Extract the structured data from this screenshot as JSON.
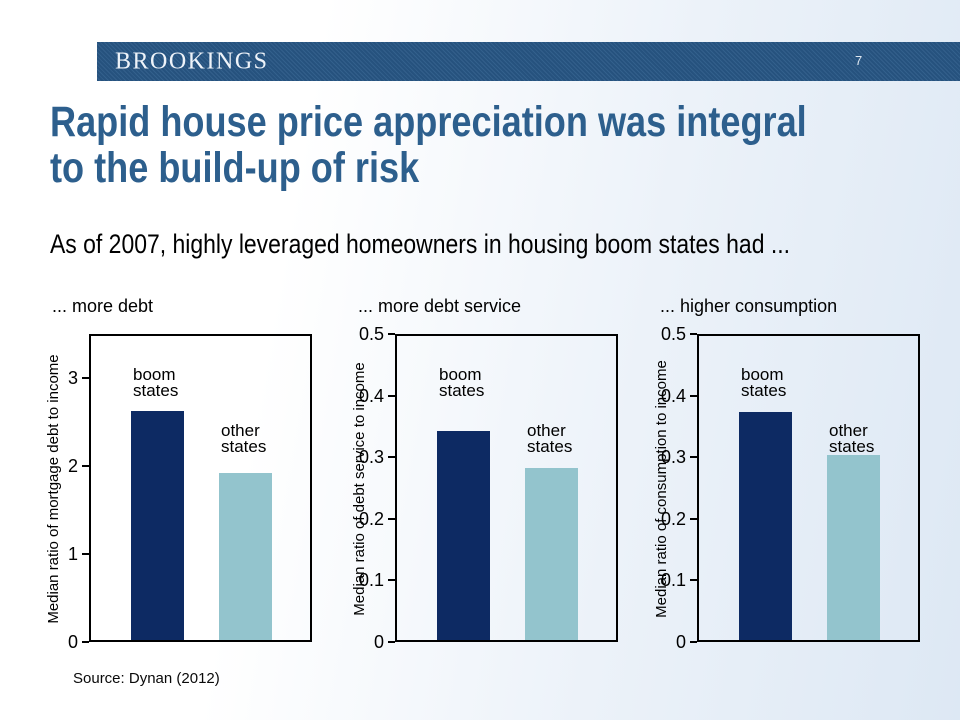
{
  "slide": {
    "brand": "BROOKINGS",
    "page_number": "7",
    "title_line1": "Rapid house price appreciation was integral",
    "title_line2": "to the build-up of risk",
    "subtitle": "As of 2007, highly leveraged homeowners in housing boom states had ...",
    "source": "Source: Dynan (2012)"
  },
  "colors": {
    "header_bar": "#26527e",
    "header_bar_stripe": "#33608c",
    "title_text": "#2d5f8d",
    "boom_bar": "#0d2a63",
    "other_bar": "#93c4cd",
    "background_left": "#ffffff",
    "background_right": "#dde8f4",
    "plot_border": "#000000"
  },
  "chart_data": [
    {
      "type": "bar",
      "title": "... more debt",
      "ylabel": "Median ratio of mortgage debt to income",
      "ylim": [
        0,
        3.5
      ],
      "yticks": [
        0,
        1,
        2,
        3
      ],
      "categories": [
        "boom states",
        "other states"
      ],
      "values": [
        2.6,
        1.9
      ],
      "grid": false,
      "legend": "none"
    },
    {
      "type": "bar",
      "title": "... more debt service",
      "ylabel": "Median ratio of debt service to income",
      "ylim": [
        0,
        0.5
      ],
      "yticks": [
        0,
        0.1,
        0.2,
        0.3,
        0.4,
        0.5
      ],
      "categories": [
        "boom states",
        "other states"
      ],
      "values": [
        0.34,
        0.28
      ],
      "grid": false,
      "legend": "none"
    },
    {
      "type": "bar",
      "title": "... higher consumption",
      "ylabel": "Median ratio of consumption to income",
      "ylim": [
        0,
        0.5
      ],
      "yticks": [
        0,
        0.1,
        0.2,
        0.3,
        0.4,
        0.5
      ],
      "categories": [
        "boom states",
        "other states"
      ],
      "values": [
        0.37,
        0.3
      ],
      "grid": false,
      "legend": "none"
    }
  ]
}
